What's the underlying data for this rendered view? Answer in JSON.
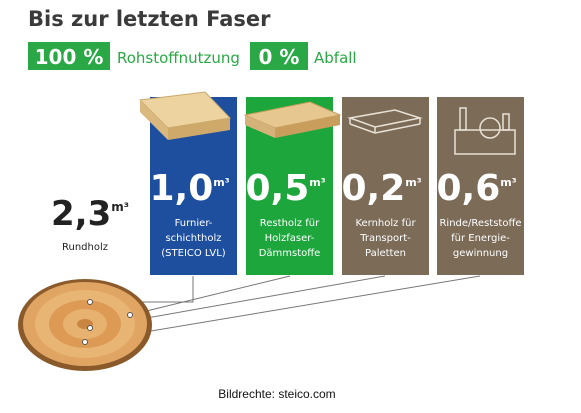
{
  "title": "Bis zur letzten Faser",
  "stats": [
    {
      "value": "100 %",
      "label": "Rohstoffnutzung"
    },
    {
      "value": "0 %",
      "label": "Abfall"
    }
  ],
  "source": {
    "amount": "2,3",
    "unit": "m³",
    "label": "Rundholz"
  },
  "products": [
    {
      "amount": "1,0",
      "unit": "m³",
      "lines": [
        "Furnier-",
        "schichtholz",
        "(STEICO LVL)"
      ],
      "color": "#1e4f9e"
    },
    {
      "amount": "0,5",
      "unit": "m³",
      "lines": [
        "Restholz für",
        "Holzfaser-",
        "Dämmstoffe"
      ],
      "color": "#1ca63c"
    },
    {
      "amount": "0,2",
      "unit": "m³",
      "lines": [
        "Kernholz für",
        "Transport-",
        "Paletten"
      ],
      "color": "#7b6b57"
    },
    {
      "amount": "0,6",
      "unit": "m³",
      "lines": [
        "Rinde/Reststoffe",
        "für Energie-",
        "gewinnung"
      ],
      "color": "#7b6b57"
    }
  ],
  "caption": "Bildrechte: steico.com"
}
